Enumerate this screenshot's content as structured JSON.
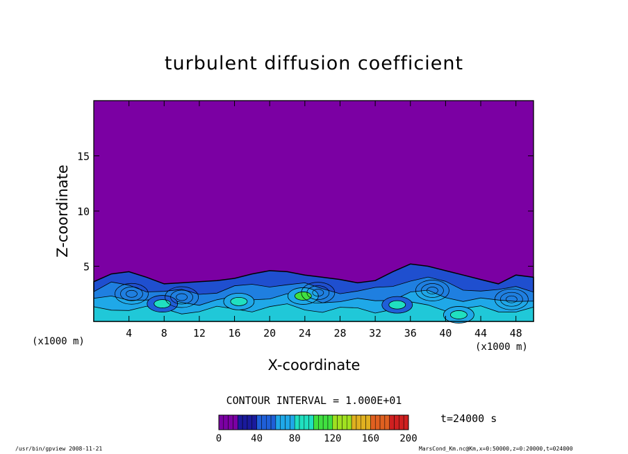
{
  "chart_data": {
    "type": "heatmap",
    "title": "turbulent diffusion coefficient",
    "xlabel": "X-coordinate",
    "ylabel": "Z-coordinate",
    "x_unit": "(x1000 m)",
    "xlim": [
      0,
      50
    ],
    "ylim": [
      0,
      20
    ],
    "x_ticks": [
      4,
      8,
      12,
      16,
      20,
      24,
      28,
      32,
      36,
      40,
      44,
      48
    ],
    "y_ticks": [
      5,
      10,
      15
    ],
    "contour_interval_label": "CONTOUR INTERVAL = 1.000E+01",
    "time_label": "t=24000 s",
    "colorbar": {
      "min": 0,
      "max": 200,
      "ticks": [
        0,
        40,
        80,
        120,
        160,
        200
      ],
      "colors": [
        "#7b00a3",
        "#1a1a9c",
        "#1f5fd8",
        "#1fa8e8",
        "#20e0c0",
        "#40e040",
        "#a0e020",
        "#e0b020",
        "#e06020",
        "#d02020"
      ]
    },
    "background_color": "#7b00a3",
    "boundary_layer_top": [
      [
        0,
        3.6
      ],
      [
        2,
        4.3
      ],
      [
        4,
        4.5
      ],
      [
        6,
        4.0
      ],
      [
        8,
        3.4
      ],
      [
        10,
        3.5
      ],
      [
        12,
        3.6
      ],
      [
        14,
        3.7
      ],
      [
        16,
        3.9
      ],
      [
        18,
        4.3
      ],
      [
        20,
        4.6
      ],
      [
        22,
        4.5
      ],
      [
        24,
        4.2
      ],
      [
        26,
        4.0
      ],
      [
        28,
        3.8
      ],
      [
        30,
        3.5
      ],
      [
        32,
        3.7
      ],
      [
        34,
        4.5
      ],
      [
        36,
        5.2
      ],
      [
        38,
        5.0
      ],
      [
        40,
        4.6
      ],
      [
        42,
        4.2
      ],
      [
        44,
        3.8
      ],
      [
        46,
        3.4
      ],
      [
        48,
        4.2
      ],
      [
        50,
        4.0
      ]
    ],
    "high_value_regions": [
      {
        "x": 7.8,
        "z": 1.6,
        "level": 80
      },
      {
        "x": 16.5,
        "z": 1.8,
        "level": 90
      },
      {
        "x": 23.8,
        "z": 2.3,
        "level": 100
      },
      {
        "x": 34.5,
        "z": 1.5,
        "level": 80
      },
      {
        "x": 41.5,
        "z": 0.6,
        "level": 90
      }
    ]
  },
  "footer": {
    "left": "/usr/bin/gpview  2008-11-21",
    "right": "MarsCond_Km.nc@Km,x=0:50000,z=0:20000,t=024000"
  }
}
